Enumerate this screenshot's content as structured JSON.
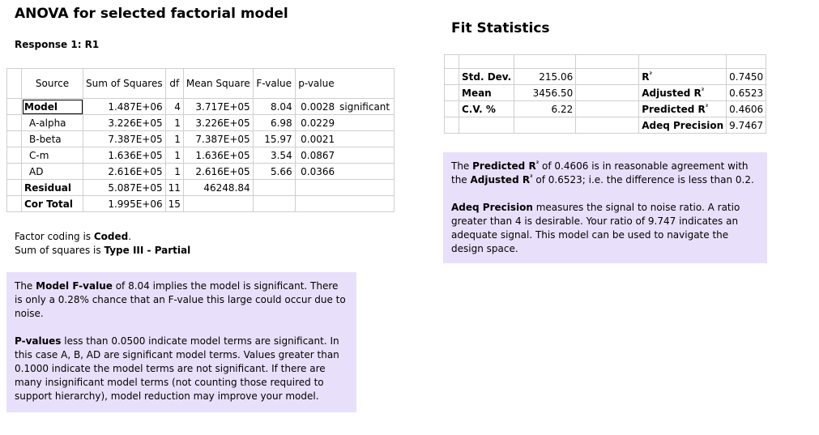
{
  "anova": {
    "title": "ANOVA for selected factorial model",
    "response": "Response 1: R1",
    "headers": {
      "source": "Source",
      "ss": "Sum of Squares",
      "df": "df",
      "ms": "Mean Square",
      "f": "F-value",
      "p": "p-value"
    },
    "rows": [
      {
        "source": "Model",
        "ss": "1.487E+06",
        "df": "4",
        "ms": "3.717E+05",
        "f": "8.04",
        "p": "0.0028",
        "sig": "significant"
      },
      {
        "source": "A-alpha",
        "ss": "3.226E+05",
        "df": "1",
        "ms": "3.226E+05",
        "f": "6.98",
        "p": "0.0229",
        "sig": ""
      },
      {
        "source": "B-beta",
        "ss": "7.387E+05",
        "df": "1",
        "ms": "7.387E+05",
        "f": "15.97",
        "p": "0.0021",
        "sig": ""
      },
      {
        "source": "C-m",
        "ss": "1.636E+05",
        "df": "1",
        "ms": "1.636E+05",
        "f": "3.54",
        "p": "0.0867",
        "sig": ""
      },
      {
        "source": "AD",
        "ss": "2.616E+05",
        "df": "1",
        "ms": "2.616E+05",
        "f": "5.66",
        "p": "0.0366",
        "sig": ""
      },
      {
        "source": "Residual",
        "ss": "5.087E+05",
        "df": "11",
        "ms": "46248.84",
        "f": "",
        "p": "",
        "sig": ""
      },
      {
        "source": "Cor Total",
        "ss": "1.995E+06",
        "df": "15",
        "ms": "",
        "f": "",
        "p": "",
        "sig": ""
      }
    ],
    "coding_prefix": "Factor coding is ",
    "coding_value": "Coded",
    "coding_suffix": ".",
    "ss_prefix": "Sum of squares is ",
    "ss_value": "Type III - Partial",
    "box": {
      "p1_a": "The ",
      "p1_b": "Model F-value",
      "p1_c": " of 8.04 implies the model is significant. There is only a 0.28% chance that an F-value this large could occur due to noise.",
      "p2_a": "P-values",
      "p2_b": " less than 0.0500 indicate model terms are significant. In this case A, B, AD are significant model terms. Values greater than 0.1000 indicate the model terms are not significant. If there are many insignificant model terms (not counting those required to support hierarchy), model reduction may improve your model."
    }
  },
  "fit": {
    "title": "Fit Statistics",
    "rows": [
      {
        "label": "Std. Dev.",
        "value": "215.06",
        "label2": "R",
        "sup2": "²",
        "value2": "0.7450"
      },
      {
        "label": "Mean",
        "value": "3456.50",
        "label2": "Adjusted R",
        "sup2": "²",
        "value2": "0.6523"
      },
      {
        "label": "C.V. %",
        "value": "6.22",
        "label2": "Predicted R",
        "sup2": "²",
        "value2": "0.4606"
      },
      {
        "label": "",
        "value": "",
        "label2": "Adeq Precision",
        "sup2": "",
        "value2": "9.7467"
      }
    ],
    "box": {
      "p1_a": "The ",
      "p1_b": "Predicted R",
      "p1_sup": "²",
      "p1_c": " of 0.4606 is in reasonable agreement with the ",
      "p1_d": "Adjusted R",
      "p1_sup2": "²",
      "p1_e": " of 0.6523; i.e. the difference is less than 0.2.",
      "p2_a": "Adeq Precision",
      "p2_b": " measures the signal to noise ratio. A ratio greater than 4 is desirable. Your ratio of 9.747 indicates an adequate signal. This model can be used to navigate the design space."
    }
  }
}
